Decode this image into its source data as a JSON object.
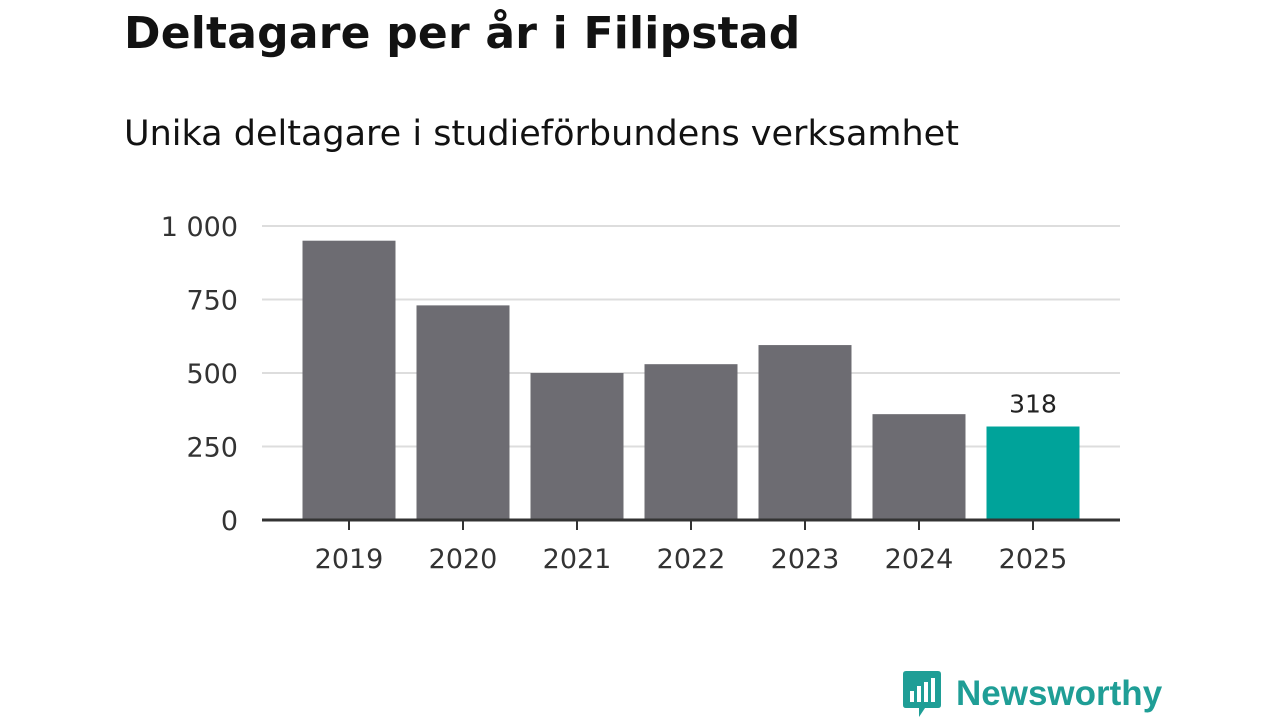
{
  "header": {
    "title": "Deltagare per år i Filipstad",
    "subtitle": "Unika deltagare i studieförbundens verksamhet"
  },
  "brand": {
    "name": "Newsworthy",
    "icon": "newsworthy-logo-icon",
    "color": "#1f9e96"
  },
  "colors": {
    "bar": "#6d6c72",
    "highlight": "#00a39a",
    "grid": "#dddddd",
    "axis": "#333333"
  },
  "chart_data": {
    "type": "bar",
    "title": "Deltagare per år i Filipstad",
    "subtitle": "Unika deltagare i studieförbundens verksamhet",
    "categories": [
      "2019",
      "2020",
      "2021",
      "2022",
      "2023",
      "2024",
      "2025"
    ],
    "values": [
      950,
      730,
      500,
      530,
      595,
      360,
      318
    ],
    "highlight_index": 6,
    "data_labels": [
      {
        "index": 6,
        "text": "318"
      }
    ],
    "xlabel": "",
    "ylabel": "",
    "ylim": [
      0,
      1000
    ],
    "yticks": [
      0,
      250,
      500,
      750,
      1000
    ],
    "ytick_labels": [
      "0",
      "250",
      "500",
      "750",
      "1 000"
    ],
    "grid": true,
    "legend": "none"
  }
}
